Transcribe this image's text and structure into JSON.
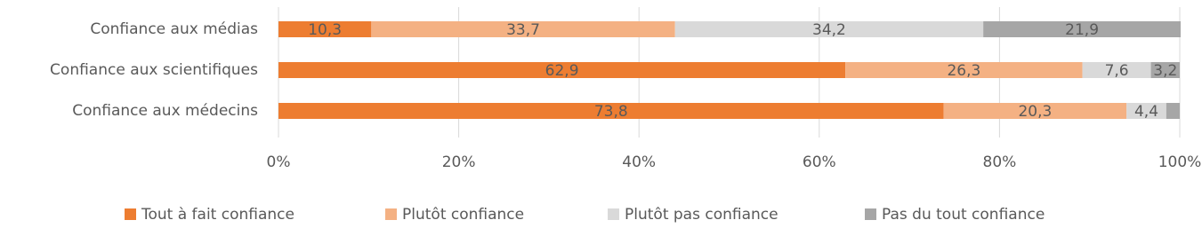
{
  "chart_data": {
    "type": "stacked-bar-horizontal",
    "categories": [
      "Confiance aux médias",
      "Confiance aux scientifiques",
      "Confiance aux médecins"
    ],
    "series": [
      {
        "name": "Tout à fait confiance",
        "color": "#ED7D31",
        "values": [
          10.3,
          62.9,
          73.8
        ],
        "value_labels": [
          "10,3",
          "62,9",
          "73,8"
        ]
      },
      {
        "name": "Plutôt confiance",
        "color": "#F4B183",
        "values": [
          33.7,
          26.3,
          20.3
        ],
        "value_labels": [
          "33,7",
          "26,3",
          "20,3"
        ]
      },
      {
        "name": "Plutôt pas confiance",
        "color": "#D9D9D9",
        "values": [
          34.2,
          7.6,
          4.4
        ],
        "value_labels": [
          "34,2",
          "7,6",
          "4,4"
        ]
      },
      {
        "name": "Pas du tout confiance",
        "color": "#A6A6A6",
        "values": [
          21.9,
          3.2,
          1.5
        ],
        "value_labels": [
          "21,9",
          "3,2",
          null
        ]
      }
    ],
    "xlim": [
      0,
      100
    ],
    "xticks": [
      {
        "value": 0,
        "label": "0%"
      },
      {
        "value": 20,
        "label": "20%"
      },
      {
        "value": 40,
        "label": "40%"
      },
      {
        "value": 60,
        "label": "60%"
      },
      {
        "value": 80,
        "label": "80%"
      },
      {
        "value": 100,
        "label": "100%"
      }
    ],
    "grid": true
  }
}
